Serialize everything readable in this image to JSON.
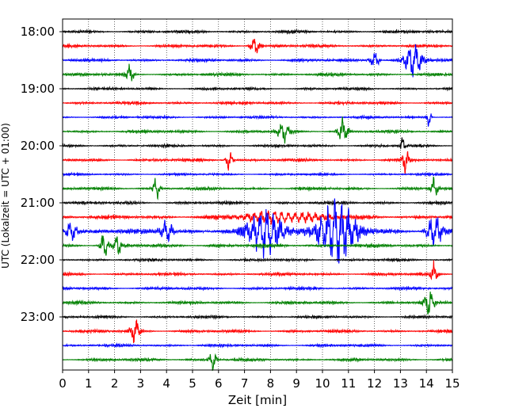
{
  "chart_data": {
    "type": "line",
    "title": "",
    "xlabel": "Zeit  [min]",
    "ylabel": "UTC (Lokalzeit = UTC + 01:00)",
    "xlim": [
      0,
      15
    ],
    "x_ticks": [
      "0",
      "1",
      "2",
      "3",
      "4",
      "5",
      "6",
      "7",
      "8",
      "9",
      "10",
      "11",
      "12",
      "13",
      "14",
      "15"
    ],
    "y_ticks": [
      "18:00",
      "19:00",
      "20:00",
      "21:00",
      "22:00",
      "23:00"
    ],
    "grid": "vertical, dotted, every minute",
    "legend": "none",
    "trace_interval_minutes": 15,
    "color_cycle": [
      "#000000",
      "#ff0000",
      "#0000ff",
      "#008000"
    ],
    "series": [
      {
        "start": "18:00",
        "amplitude": 0.1,
        "events": []
      },
      {
        "start": "18:15",
        "amplitude": 0.1,
        "events": [
          {
            "at": 7.4,
            "width": 0.4,
            "amp": 0.3
          }
        ]
      },
      {
        "start": "18:30",
        "amplitude": 0.1,
        "events": [
          {
            "at": 12.0,
            "width": 0.4,
            "amp": 0.25
          },
          {
            "at": 13.5,
            "width": 0.8,
            "amp": 0.45
          }
        ]
      },
      {
        "start": "18:45",
        "amplitude": 0.1,
        "events": [
          {
            "at": 2.6,
            "width": 0.3,
            "amp": 0.25
          }
        ]
      },
      {
        "start": "19:00",
        "amplitude": 0.09,
        "events": []
      },
      {
        "start": "19:15",
        "amplitude": 0.1,
        "events": []
      },
      {
        "start": "19:30",
        "amplitude": 0.09,
        "events": [
          {
            "at": 14.1,
            "width": 0.2,
            "amp": 0.25
          }
        ]
      },
      {
        "start": "19:45",
        "amplitude": 0.1,
        "events": [
          {
            "at": 10.8,
            "width": 0.4,
            "amp": 0.35
          },
          {
            "at": 8.5,
            "width": 0.5,
            "amp": 0.25
          }
        ]
      },
      {
        "start": "20:00",
        "amplitude": 0.09,
        "events": [
          {
            "at": 13.1,
            "width": 0.2,
            "amp": 0.3
          }
        ]
      },
      {
        "start": "20:15",
        "amplitude": 0.1,
        "events": [
          {
            "at": 6.4,
            "width": 0.3,
            "amp": 0.3
          },
          {
            "at": 13.2,
            "width": 0.3,
            "amp": 0.3
          }
        ]
      },
      {
        "start": "20:30",
        "amplitude": 0.08,
        "events": []
      },
      {
        "start": "20:45",
        "amplitude": 0.1,
        "events": [
          {
            "at": 3.6,
            "width": 0.3,
            "amp": 0.3
          },
          {
            "at": 14.3,
            "width": 0.3,
            "amp": 0.3
          }
        ]
      },
      {
        "start": "21:00",
        "amplitude": 0.1,
        "events": []
      },
      {
        "start": "21:15",
        "amplitude": 0.13,
        "events": [
          {
            "at": 8.5,
            "width": 3.5,
            "amp": 0.15
          }
        ]
      },
      {
        "start": "21:30",
        "amplitude": 0.16,
        "events": [
          {
            "at": 7.8,
            "width": 1.5,
            "amp": 0.65
          },
          {
            "at": 10.5,
            "width": 1.8,
            "amp": 0.85
          },
          {
            "at": 14.3,
            "width": 0.7,
            "amp": 0.45
          },
          {
            "at": 0.3,
            "width": 0.5,
            "amp": 0.35
          },
          {
            "at": 4.0,
            "width": 0.6,
            "amp": 0.3
          }
        ]
      },
      {
        "start": "21:45",
        "amplitude": 0.12,
        "events": [
          {
            "at": 1.6,
            "width": 0.3,
            "amp": 0.4
          },
          {
            "at": 2.1,
            "width": 0.3,
            "amp": 0.3
          }
        ]
      },
      {
        "start": "22:00",
        "amplitude": 0.09,
        "events": []
      },
      {
        "start": "22:15",
        "amplitude": 0.1,
        "events": [
          {
            "at": 14.3,
            "width": 0.3,
            "amp": 0.3
          }
        ]
      },
      {
        "start": "22:30",
        "amplitude": 0.1,
        "events": []
      },
      {
        "start": "22:45",
        "amplitude": 0.1,
        "events": [
          {
            "at": 14.1,
            "width": 0.4,
            "amp": 0.35
          }
        ]
      },
      {
        "start": "23:00",
        "amplitude": 0.09,
        "events": []
      },
      {
        "start": "23:15",
        "amplitude": 0.1,
        "events": [
          {
            "at": 2.8,
            "width": 0.4,
            "amp": 0.35
          }
        ]
      },
      {
        "start": "23:30",
        "amplitude": 0.09,
        "events": []
      },
      {
        "start": "23:45",
        "amplitude": 0.1,
        "events": [
          {
            "at": 5.8,
            "width": 0.3,
            "amp": 0.3
          }
        ]
      }
    ]
  }
}
